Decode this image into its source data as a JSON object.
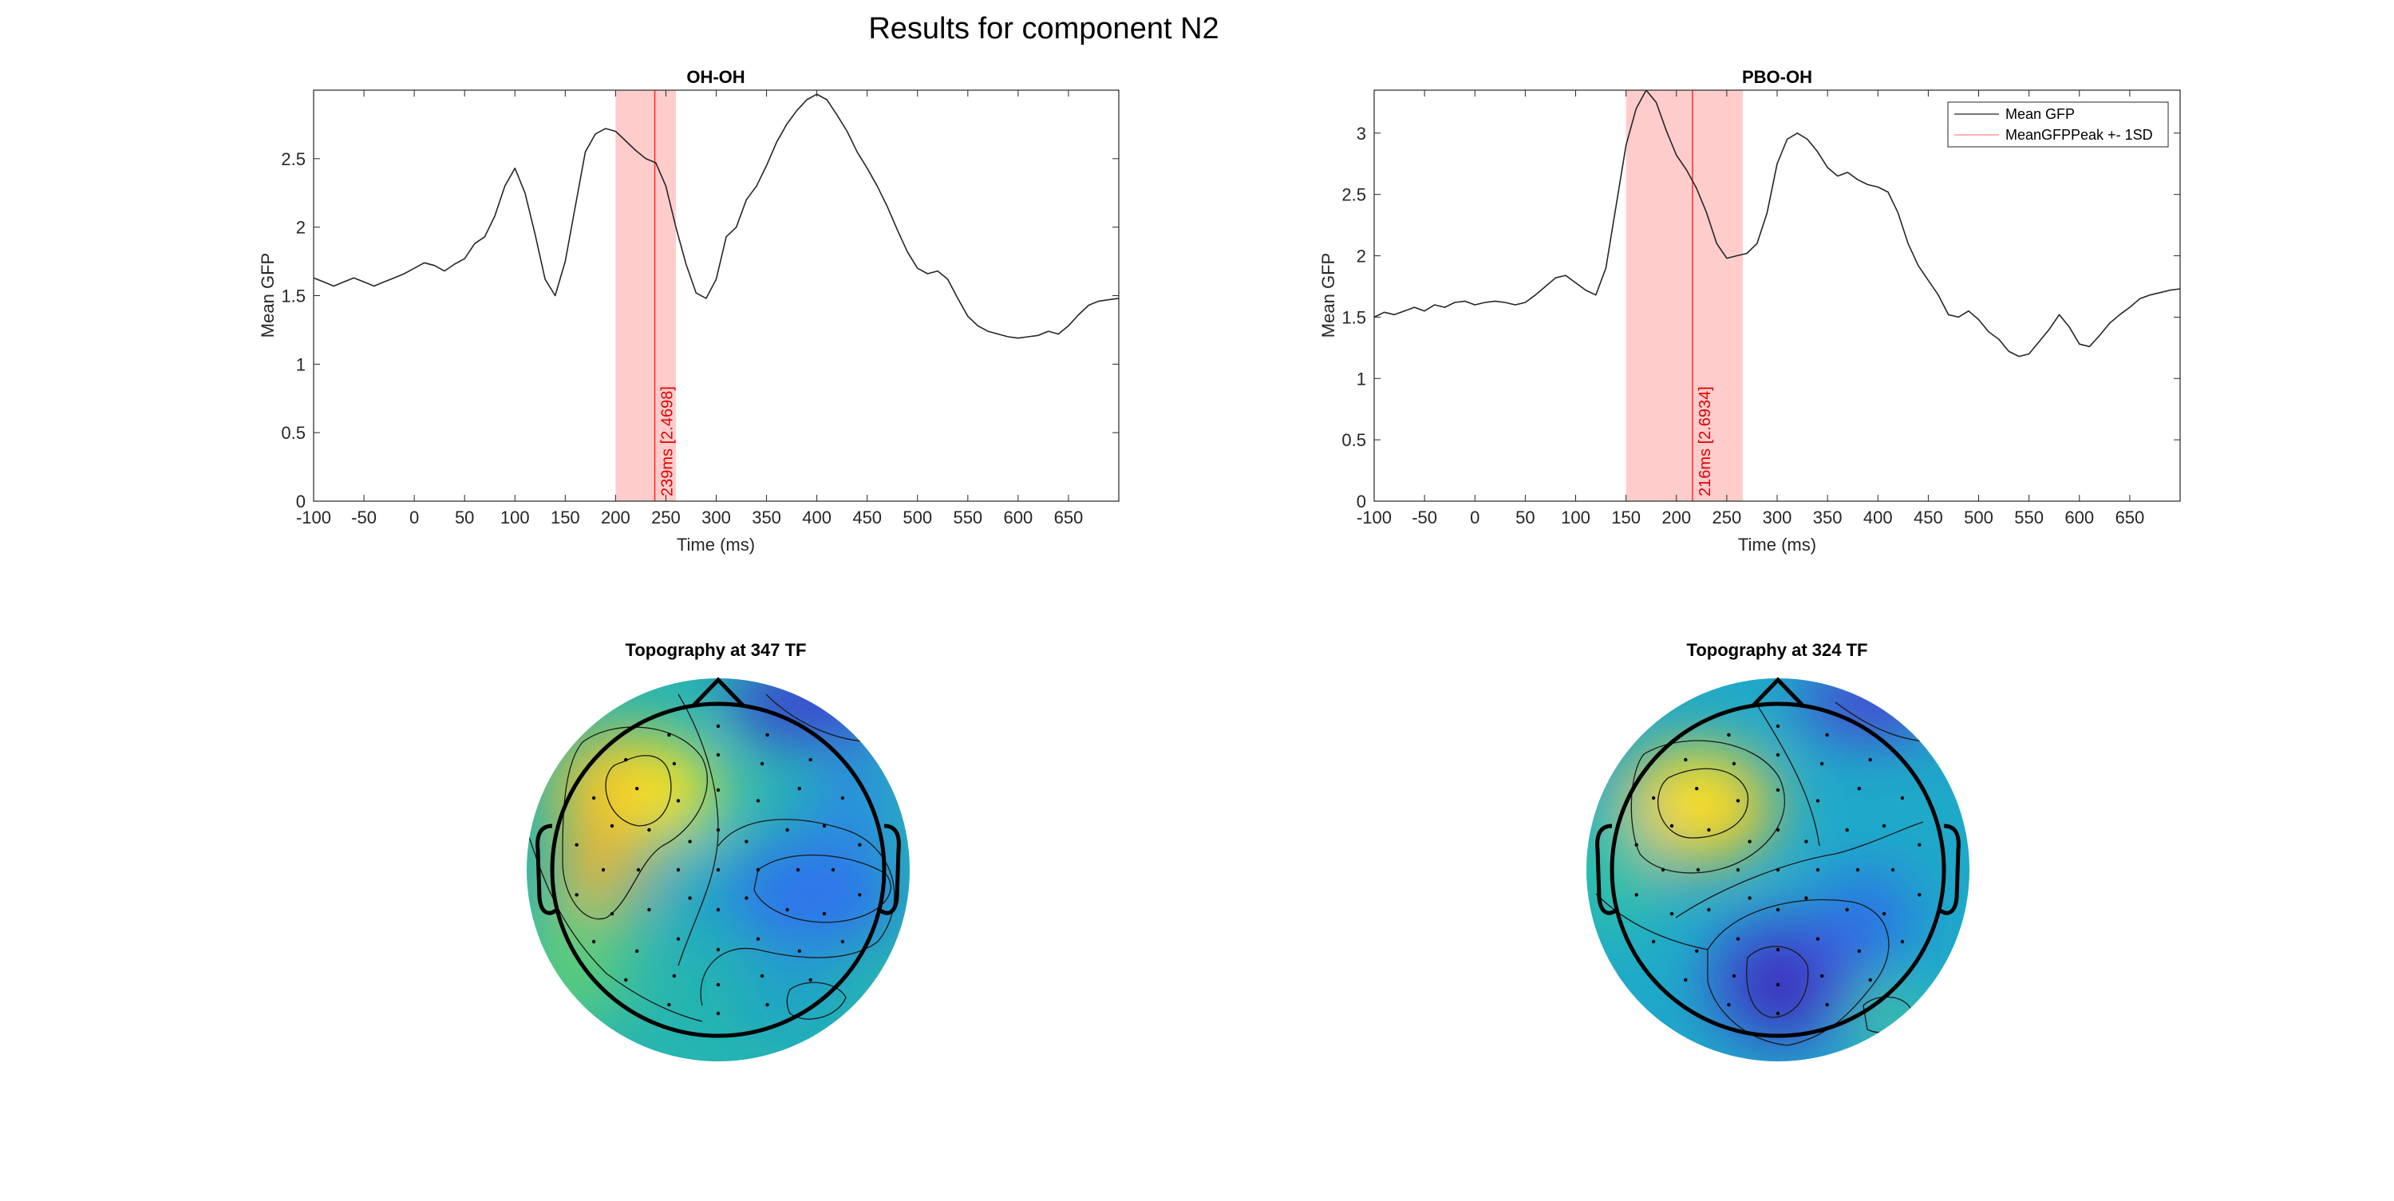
{
  "figure": {
    "title": "Results for component N2"
  },
  "colors": {
    "gfp_line": "#262626",
    "peak_line": "#ff2020",
    "sd_band": "#ffcccc",
    "peak_label": "#e00000"
  },
  "chart_data": [
    {
      "type": "line",
      "title": "OH-OH",
      "xlabel": "Time (ms)",
      "ylabel": "Mean GFP",
      "xlim": [
        -100,
        700
      ],
      "ylim": [
        0,
        3
      ],
      "xticks": [
        -100,
        -50,
        0,
        50,
        100,
        150,
        200,
        250,
        300,
        350,
        400,
        450,
        500,
        550,
        600,
        650
      ],
      "yticks": [
        0,
        0.5,
        1,
        1.5,
        2,
        2.5
      ],
      "legend": null,
      "series": [
        {
          "x": [
            -100,
            -90,
            -80,
            -70,
            -60,
            -50,
            -40,
            -30,
            -20,
            -10,
            0,
            10,
            20,
            30,
            40,
            50,
            60,
            70,
            80,
            90,
            100,
            110,
            120,
            130,
            140,
            150,
            160,
            170,
            180,
            190,
            200,
            210,
            220,
            230,
            240,
            250,
            260,
            270,
            280,
            290,
            300,
            310,
            320,
            330,
            340,
            350,
            360,
            370,
            380,
            390,
            400,
            410,
            420,
            430,
            440,
            450,
            460,
            470,
            480,
            490,
            500,
            510,
            520,
            530,
            540,
            550,
            560,
            570,
            580,
            590,
            600,
            610,
            620,
            630,
            640,
            650,
            660,
            670,
            680,
            690,
            700
          ],
          "y": [
            1.63,
            1.6,
            1.57,
            1.6,
            1.63,
            1.6,
            1.57,
            1.6,
            1.63,
            1.66,
            1.7,
            1.74,
            1.72,
            1.68,
            1.73,
            1.77,
            1.88,
            1.93,
            2.08,
            2.3,
            2.43,
            2.25,
            1.95,
            1.62,
            1.5,
            1.75,
            2.15,
            2.55,
            2.68,
            2.72,
            2.7,
            2.63,
            2.56,
            2.5,
            2.47,
            2.3,
            2.0,
            1.73,
            1.52,
            1.48,
            1.62,
            1.93,
            2.0,
            2.2,
            2.3,
            2.45,
            2.62,
            2.75,
            2.85,
            2.93,
            2.97,
            2.93,
            2.82,
            2.7,
            2.55,
            2.43,
            2.3,
            2.15,
            1.98,
            1.82,
            1.7,
            1.66,
            1.68,
            1.62,
            1.48,
            1.35,
            1.28,
            1.24,
            1.22,
            1.2,
            1.19,
            1.2,
            1.21,
            1.24,
            1.22,
            1.28,
            1.36,
            1.43,
            1.46,
            1.47,
            1.48
          ]
        }
      ],
      "peak": {
        "x": 239,
        "sd_range": [
          200,
          260
        ],
        "label": "239ms [2.4698]"
      }
    },
    {
      "type": "line",
      "title": "PBO-OH",
      "xlabel": "Time (ms)",
      "ylabel": "Mean GFP",
      "xlim": [
        -100,
        700
      ],
      "ylim": [
        0,
        3.35
      ],
      "xticks": [
        -100,
        -50,
        0,
        50,
        100,
        150,
        200,
        250,
        300,
        350,
        400,
        450,
        500,
        550,
        600,
        650
      ],
      "yticks": [
        0,
        0.5,
        1,
        1.5,
        2,
        2.5,
        3
      ],
      "legend": {
        "placement": "top-right",
        "entries": [
          "Mean GFP",
          "MeanGFPPeak +- 1SD"
        ]
      },
      "series": [
        {
          "name": "Mean GFP",
          "x": [
            -100,
            -90,
            -80,
            -70,
            -60,
            -50,
            -40,
            -30,
            -20,
            -10,
            0,
            10,
            20,
            30,
            40,
            50,
            60,
            70,
            80,
            90,
            100,
            110,
            120,
            130,
            140,
            150,
            160,
            170,
            180,
            190,
            200,
            210,
            220,
            230,
            240,
            250,
            260,
            270,
            280,
            290,
            300,
            310,
            320,
            330,
            340,
            350,
            360,
            370,
            380,
            390,
            400,
            410,
            420,
            430,
            440,
            450,
            460,
            470,
            480,
            490,
            500,
            510,
            520,
            530,
            540,
            550,
            560,
            570,
            580,
            590,
            600,
            610,
            620,
            630,
            640,
            650,
            660,
            670,
            680,
            690,
            700
          ],
          "y": [
            1.5,
            1.54,
            1.52,
            1.55,
            1.58,
            1.55,
            1.6,
            1.58,
            1.62,
            1.63,
            1.6,
            1.62,
            1.63,
            1.62,
            1.6,
            1.62,
            1.68,
            1.75,
            1.82,
            1.84,
            1.78,
            1.72,
            1.68,
            1.9,
            2.4,
            2.9,
            3.2,
            3.35,
            3.25,
            3.02,
            2.82,
            2.7,
            2.55,
            2.35,
            2.1,
            1.98,
            2.0,
            2.02,
            2.1,
            2.35,
            2.75,
            2.95,
            3.0,
            2.95,
            2.85,
            2.72,
            2.65,
            2.68,
            2.62,
            2.58,
            2.56,
            2.52,
            2.35,
            2.1,
            1.92,
            1.8,
            1.68,
            1.52,
            1.5,
            1.55,
            1.48,
            1.38,
            1.32,
            1.22,
            1.18,
            1.2,
            1.3,
            1.4,
            1.52,
            1.42,
            1.28,
            1.26,
            1.35,
            1.45,
            1.52,
            1.58,
            1.65,
            1.68,
            1.7,
            1.72,
            1.73
          ]
        }
      ],
      "peak": {
        "name": "MeanGFPPeak +- 1SD",
        "x": 216,
        "sd_range": [
          150,
          266
        ],
        "label": "216ms [2.6934]"
      }
    }
  ],
  "topographies": [
    {
      "title": "Topography at 347 TF"
    },
    {
      "title": "Topography at 324 TF"
    }
  ]
}
